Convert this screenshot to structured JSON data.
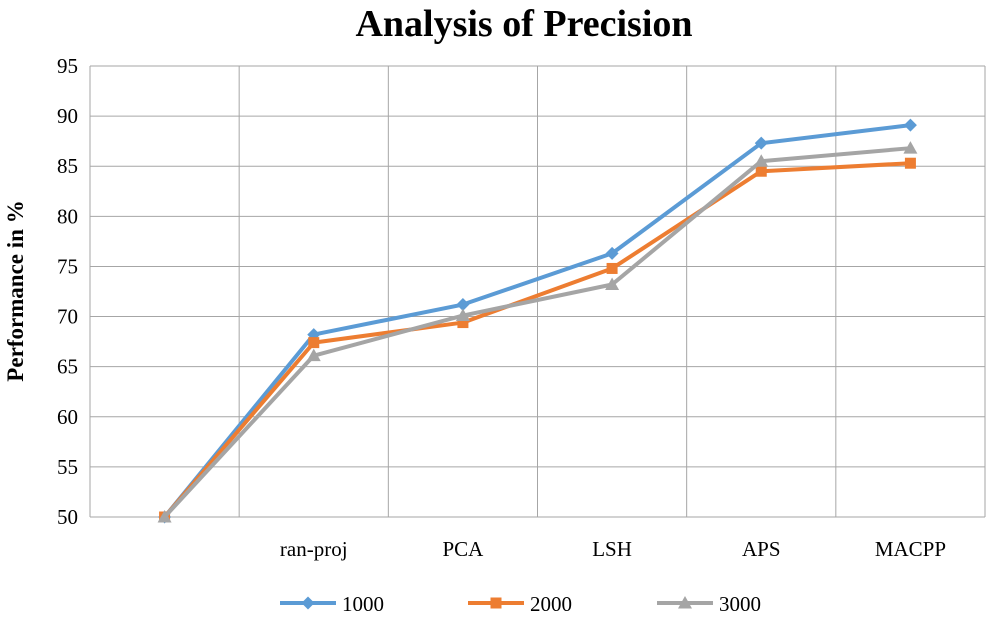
{
  "chart_data": {
    "type": "line",
    "title": "Analysis of Precision",
    "xlabel": "",
    "ylabel": "Performance  in  %",
    "categories": [
      "",
      "ran-proj",
      "PCA",
      "LSH",
      "APS",
      "MACPP"
    ],
    "ylim": [
      50,
      95
    ],
    "yticks": [
      50,
      55,
      60,
      65,
      70,
      75,
      80,
      85,
      90,
      95
    ],
    "grid": true,
    "legend": "bottom",
    "series": [
      {
        "name": "1000",
        "color": "#5b9bd5",
        "marker": "diamond",
        "values": [
          50.0,
          68.2,
          71.2,
          76.3,
          87.3,
          89.1
        ]
      },
      {
        "name": "2000",
        "color": "#ed7d31",
        "marker": "square",
        "values": [
          50.0,
          67.4,
          69.4,
          74.8,
          84.5,
          85.3
        ]
      },
      {
        "name": "3000",
        "color": "#a5a5a5",
        "marker": "triangle",
        "values": [
          50.0,
          66.1,
          70.1,
          73.2,
          85.5,
          86.8
        ]
      }
    ]
  }
}
